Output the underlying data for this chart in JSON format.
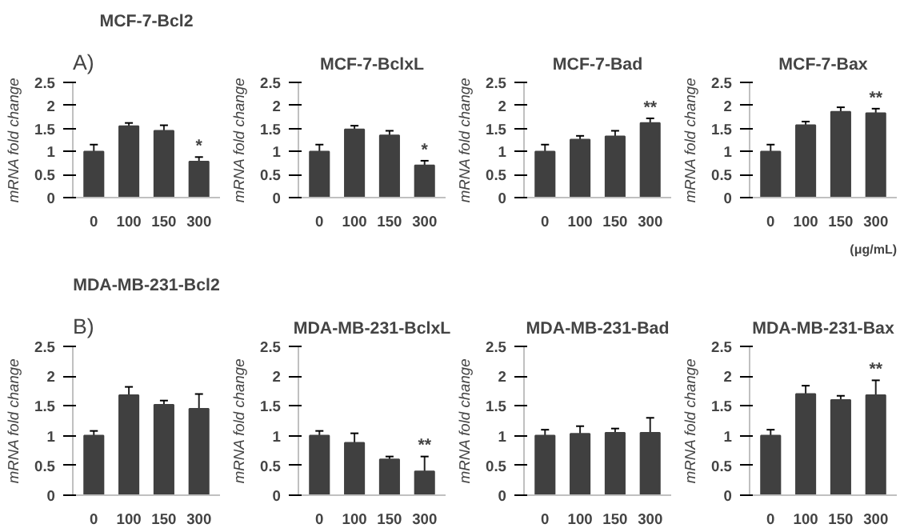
{
  "chart_data": [
    {
      "type": "bar",
      "title": "MCF-7-Bcl2",
      "ylabel": "mRNA fold change",
      "categories": [
        "0",
        "100",
        "150",
        "300"
      ],
      "values": [
        1.0,
        1.55,
        1.45,
        0.78
      ],
      "errors": [
        0.15,
        0.07,
        0.12,
        0.1
      ],
      "color": "#404040",
      "ylim": [
        0,
        2.5
      ],
      "yticks": [
        0,
        0.5,
        1,
        1.5,
        2,
        2.5
      ],
      "grid": false,
      "annotations": [
        "A)",
        {
          "text": "*",
          "x": "300",
          "y": 0.9
        }
      ]
    },
    {
      "type": "bar",
      "title": "MCF-7-BclxL",
      "ylabel": "mRNA fold change",
      "categories": [
        "0",
        "100",
        "150",
        "300"
      ],
      "values": [
        1.0,
        1.48,
        1.35,
        0.7
      ],
      "errors": [
        0.15,
        0.08,
        0.1,
        0.1
      ],
      "color": "#404040",
      "ylim": [
        0,
        2.5
      ],
      "yticks": [
        0,
        0.5,
        1,
        1.5,
        2,
        2.5
      ],
      "grid": false,
      "annotations": [
        {
          "text": "*",
          "x": "300",
          "y": 0.82
        }
      ]
    },
    {
      "type": "bar",
      "title": "MCF-7-Bad",
      "ylabel": "mRNA fold change",
      "categories": [
        "0",
        "100",
        "150",
        "300"
      ],
      "values": [
        1.0,
        1.26,
        1.33,
        1.62
      ],
      "errors": [
        0.15,
        0.08,
        0.12,
        0.1
      ],
      "color": "#404040",
      "ylim": [
        0,
        2.5
      ],
      "yticks": [
        0,
        0.5,
        1,
        1.5,
        2,
        2.5
      ],
      "grid": false,
      "annotations": [
        {
          "text": "**",
          "x": "300",
          "y": 1.74
        }
      ]
    },
    {
      "type": "bar",
      "title": "MCF-7-Bax",
      "ylabel": "mRNA fold change",
      "categories": [
        "0",
        "100",
        "150",
        "300"
      ],
      "values": [
        1.0,
        1.57,
        1.86,
        1.83
      ],
      "errors": [
        0.15,
        0.08,
        0.1,
        0.1
      ],
      "color": "#404040",
      "ylim": [
        0,
        2.5
      ],
      "yticks": [
        0,
        0.5,
        1,
        1.5,
        2,
        2.5
      ],
      "grid": false,
      "annotations": [
        "(μg/mL)",
        {
          "text": "**",
          "x": "300",
          "y": 1.95
        }
      ]
    },
    {
      "type": "bar",
      "title": "MDA-MB-231-Bcl2",
      "ylabel": "mRNA fold change",
      "categories": [
        "0",
        "100",
        "150",
        "300"
      ],
      "values": [
        1.0,
        1.68,
        1.52,
        1.45
      ],
      "errors": [
        0.08,
        0.14,
        0.07,
        0.25
      ],
      "color": "#404040",
      "ylim": [
        0,
        2.5
      ],
      "yticks": [
        0,
        0.5,
        1,
        1.5,
        2,
        2.5
      ],
      "grid": false,
      "annotations": [
        "B)"
      ]
    },
    {
      "type": "bar",
      "title": "MDA-MB-231-BclxL",
      "ylabel": "mRNA fold change",
      "categories": [
        "0",
        "100",
        "150",
        "300"
      ],
      "values": [
        1.0,
        0.88,
        0.6,
        0.4
      ],
      "errors": [
        0.08,
        0.16,
        0.05,
        0.25
      ],
      "color": "#404040",
      "ylim": [
        0,
        2.5
      ],
      "yticks": [
        0,
        0.5,
        1,
        1.5,
        2,
        2.5
      ],
      "grid": false,
      "annotations": [
        {
          "text": "**",
          "x": "300",
          "y": 0.67
        }
      ]
    },
    {
      "type": "bar",
      "title": "MDA-MB-231-Bad",
      "ylabel": "mRNA fold change",
      "categories": [
        "0",
        "100",
        "150",
        "300"
      ],
      "values": [
        1.0,
        1.03,
        1.05,
        1.05
      ],
      "errors": [
        0.1,
        0.13,
        0.07,
        0.25
      ],
      "color": "#404040",
      "ylim": [
        0,
        2.5
      ],
      "yticks": [
        0,
        0.5,
        1,
        1.5,
        2,
        2.5
      ],
      "grid": false
    },
    {
      "type": "bar",
      "title": "MDA-MB-231-Bax",
      "ylabel": "mRNA fold change",
      "categories": [
        "0",
        "100",
        "150",
        "300"
      ],
      "values": [
        1.0,
        1.7,
        1.6,
        1.68
      ],
      "errors": [
        0.1,
        0.14,
        0.07,
        0.25
      ],
      "color": "#404040",
      "ylim": [
        0,
        2.5
      ],
      "yticks": [
        0,
        0.5,
        1,
        1.5,
        2,
        2.5
      ],
      "grid": false,
      "annotations": [
        {
          "text": "**",
          "x": "300",
          "y": 1.95
        }
      ]
    }
  ]
}
